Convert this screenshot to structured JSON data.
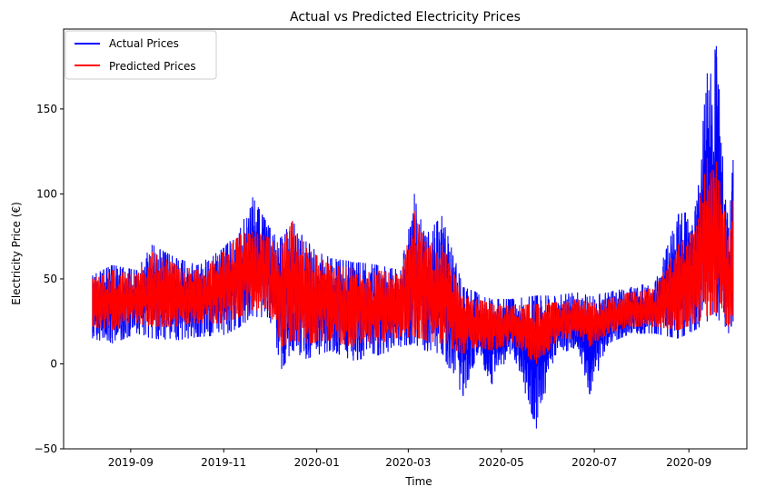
{
  "chart_data": {
    "type": "line",
    "title": "Actual vs Predicted Electricity Prices",
    "xlabel": "Time",
    "ylabel": "Electricity Price (€)",
    "xlim": [
      "2019-07-19",
      "2020-10-09"
    ],
    "ylim": [
      -50,
      197
    ],
    "x_ticks": [
      "2019-09",
      "2019-11",
      "2020-01",
      "2020-03",
      "2020-05",
      "2020-07",
      "2020-09"
    ],
    "y_ticks": [
      -50,
      0,
      50,
      100,
      150
    ],
    "legend": {
      "placement": "top-left",
      "entries": [
        "Actual Prices",
        "Predicted Prices"
      ]
    },
    "grid": false,
    "series": [
      {
        "name": "Actual Prices",
        "color": "#0000ff",
        "envelope": [
          {
            "date": "2019-08-07",
            "low": 15,
            "high": 52
          },
          {
            "date": "2019-08-20",
            "low": 12,
            "high": 58
          },
          {
            "date": "2019-09-05",
            "low": 18,
            "high": 55
          },
          {
            "date": "2019-09-15",
            "low": 15,
            "high": 70
          },
          {
            "date": "2019-10-01",
            "low": 14,
            "high": 62
          },
          {
            "date": "2019-10-15",
            "low": 16,
            "high": 58
          },
          {
            "date": "2019-11-01",
            "low": 17,
            "high": 68
          },
          {
            "date": "2019-11-12",
            "low": 22,
            "high": 80
          },
          {
            "date": "2019-11-20",
            "low": 28,
            "high": 98
          },
          {
            "date": "2019-12-01",
            "low": 27,
            "high": 80
          },
          {
            "date": "2019-12-09",
            "low": -3,
            "high": 75
          },
          {
            "date": "2019-12-16",
            "low": 8,
            "high": 84
          },
          {
            "date": "2019-12-25",
            "low": 3,
            "high": 72
          },
          {
            "date": "2020-01-10",
            "low": 8,
            "high": 62
          },
          {
            "date": "2020-01-25",
            "low": 2,
            "high": 60
          },
          {
            "date": "2020-02-10",
            "low": 5,
            "high": 58
          },
          {
            "date": "2020-02-25",
            "low": 10,
            "high": 55
          },
          {
            "date": "2020-03-05",
            "low": 12,
            "high": 100
          },
          {
            "date": "2020-03-12",
            "low": 8,
            "high": 75
          },
          {
            "date": "2020-03-23",
            "low": 6,
            "high": 87
          },
          {
            "date": "2020-04-06",
            "low": -19,
            "high": 45
          },
          {
            "date": "2020-04-15",
            "low": 5,
            "high": 42
          },
          {
            "date": "2020-04-25",
            "low": -12,
            "high": 38
          },
          {
            "date": "2020-05-08",
            "low": 8,
            "high": 38
          },
          {
            "date": "2020-05-24",
            "low": -38,
            "high": 40
          },
          {
            "date": "2020-06-05",
            "low": 5,
            "high": 40
          },
          {
            "date": "2020-06-20",
            "low": 10,
            "high": 42
          },
          {
            "date": "2020-06-28",
            "low": -18,
            "high": 40
          },
          {
            "date": "2020-07-10",
            "low": 12,
            "high": 42
          },
          {
            "date": "2020-07-25",
            "low": 18,
            "high": 45
          },
          {
            "date": "2020-08-10",
            "low": 18,
            "high": 48
          },
          {
            "date": "2020-08-25",
            "low": 15,
            "high": 88
          },
          {
            "date": "2020-09-05",
            "low": 20,
            "high": 90
          },
          {
            "date": "2020-09-13",
            "low": 25,
            "high": 171
          },
          {
            "date": "2020-09-19",
            "low": 28,
            "high": 187
          },
          {
            "date": "2020-09-27",
            "low": 18,
            "high": 80
          },
          {
            "date": "2020-09-30",
            "low": 25,
            "high": 120
          }
        ]
      },
      {
        "name": "Predicted Prices",
        "color": "#ff0000",
        "envelope": [
          {
            "date": "2019-08-07",
            "low": 22,
            "high": 50
          },
          {
            "date": "2019-08-20",
            "low": 20,
            "high": 55
          },
          {
            "date": "2019-09-05",
            "low": 24,
            "high": 52
          },
          {
            "date": "2019-09-15",
            "low": 22,
            "high": 66
          },
          {
            "date": "2019-10-01",
            "low": 22,
            "high": 58
          },
          {
            "date": "2019-10-15",
            "low": 24,
            "high": 55
          },
          {
            "date": "2019-11-01",
            "low": 24,
            "high": 66
          },
          {
            "date": "2019-11-12",
            "low": 28,
            "high": 76
          },
          {
            "date": "2019-11-20",
            "low": 32,
            "high": 78
          },
          {
            "date": "2019-12-01",
            "low": 30,
            "high": 74
          },
          {
            "date": "2019-12-09",
            "low": 10,
            "high": 70
          },
          {
            "date": "2019-12-16",
            "low": 14,
            "high": 84
          },
          {
            "date": "2019-12-25",
            "low": 12,
            "high": 68
          },
          {
            "date": "2020-01-10",
            "low": 14,
            "high": 58
          },
          {
            "date": "2020-01-25",
            "low": 10,
            "high": 56
          },
          {
            "date": "2020-02-10",
            "low": 12,
            "high": 55
          },
          {
            "date": "2020-02-25",
            "low": 16,
            "high": 52
          },
          {
            "date": "2020-03-05",
            "low": 16,
            "high": 90
          },
          {
            "date": "2020-03-12",
            "low": 14,
            "high": 72
          },
          {
            "date": "2020-03-23",
            "low": 12,
            "high": 70
          },
          {
            "date": "2020-04-06",
            "low": 6,
            "high": 40
          },
          {
            "date": "2020-04-15",
            "low": 10,
            "high": 38
          },
          {
            "date": "2020-04-25",
            "low": 8,
            "high": 35
          },
          {
            "date": "2020-05-08",
            "low": 12,
            "high": 34
          },
          {
            "date": "2020-05-24",
            "low": 0,
            "high": 35
          },
          {
            "date": "2020-06-05",
            "low": 12,
            "high": 36
          },
          {
            "date": "2020-06-20",
            "low": 16,
            "high": 38
          },
          {
            "date": "2020-06-28",
            "low": 10,
            "high": 36
          },
          {
            "date": "2020-07-10",
            "low": 18,
            "high": 38
          },
          {
            "date": "2020-07-25",
            "low": 22,
            "high": 42
          },
          {
            "date": "2020-08-10",
            "low": 22,
            "high": 45
          },
          {
            "date": "2020-08-25",
            "low": 20,
            "high": 70
          },
          {
            "date": "2020-09-05",
            "low": 24,
            "high": 78
          },
          {
            "date": "2020-09-13",
            "low": 28,
            "high": 121
          },
          {
            "date": "2020-09-19",
            "low": 30,
            "high": 119
          },
          {
            "date": "2020-09-27",
            "low": 22,
            "high": 75
          },
          {
            "date": "2020-09-30",
            "low": 28,
            "high": 96
          }
        ]
      }
    ]
  }
}
